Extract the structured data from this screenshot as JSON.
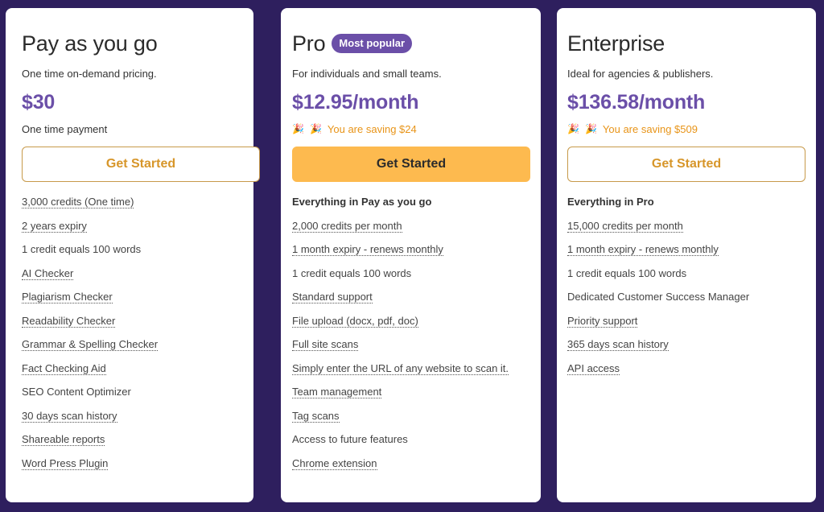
{
  "plans": [
    {
      "title": "Pay as you go",
      "description": "One time on-demand pricing.",
      "price": "$30",
      "note": "One time payment",
      "cta": "Get Started",
      "features": [
        {
          "text": "3,000 credits (One time)",
          "tooltip": true
        },
        {
          "text": "2 years expiry",
          "tooltip": true
        },
        {
          "text": "1 credit equals 100 words",
          "tooltip": false
        },
        {
          "text": "AI Checker",
          "tooltip": true
        },
        {
          "text": "Plagiarism Checker",
          "tooltip": true
        },
        {
          "text": "Readability Checker",
          "tooltip": true
        },
        {
          "text": "Grammar & Spelling Checker",
          "tooltip": true
        },
        {
          "text": "Fact Checking Aid",
          "tooltip": true
        },
        {
          "text": "SEO Content Optimizer",
          "tooltip": false
        },
        {
          "text": "30 days scan history",
          "tooltip": true
        },
        {
          "text": "Shareable reports",
          "tooltip": true
        },
        {
          "text": "Word Press Plugin",
          "tooltip": true
        }
      ]
    },
    {
      "title": "Pro",
      "badge": "Most popular",
      "description": "For individuals and small teams.",
      "price": "$12.95/month",
      "note": "You are saving $24",
      "cta": "Get Started",
      "features_heading": "Everything in Pay as you go",
      "features": [
        {
          "text": "2,000 credits per month",
          "tooltip": true
        },
        {
          "text": "1 month expiry - renews monthly",
          "tooltip": true
        },
        {
          "text": "1 credit equals 100 words",
          "tooltip": false
        },
        {
          "text": "Standard support",
          "tooltip": true
        },
        {
          "text": "File upload (docx, pdf, doc)",
          "tooltip": true
        },
        {
          "text": "Full site scans",
          "tooltip": true
        },
        {
          "text": "Simply enter the URL of any website to scan it.",
          "tooltip": true
        },
        {
          "text": "Team management",
          "tooltip": true
        },
        {
          "text": "Tag scans",
          "tooltip": true
        },
        {
          "text": "Access to future features",
          "tooltip": false
        },
        {
          "text": "Chrome extension",
          "tooltip": true
        }
      ]
    },
    {
      "title": "Enterprise",
      "description": "Ideal for agencies & publishers.",
      "price": "$136.58/month",
      "note": "You are saving $509",
      "cta": "Get Started",
      "features_heading": "Everything in Pro",
      "features": [
        {
          "text": "15,000 credits per month",
          "tooltip": true
        },
        {
          "text": "1 month expiry - renews monthly",
          "tooltip": true
        },
        {
          "text": "1 credit equals 100 words",
          "tooltip": false
        },
        {
          "text": "Dedicated Customer Success Manager",
          "tooltip": false
        },
        {
          "text": "Priority support",
          "tooltip": true
        },
        {
          "text": "365 days scan history",
          "tooltip": true
        },
        {
          "text": "API access",
          "tooltip": true
        }
      ]
    }
  ],
  "colors": {
    "background": "#2e1f5e",
    "price_accent": "#6b4fa8",
    "cta_primary": "#fdba4f",
    "cta_outline_text": "#d7962a",
    "saving_text": "#e89418"
  },
  "icons": {
    "saving": "party-popper-icon"
  }
}
